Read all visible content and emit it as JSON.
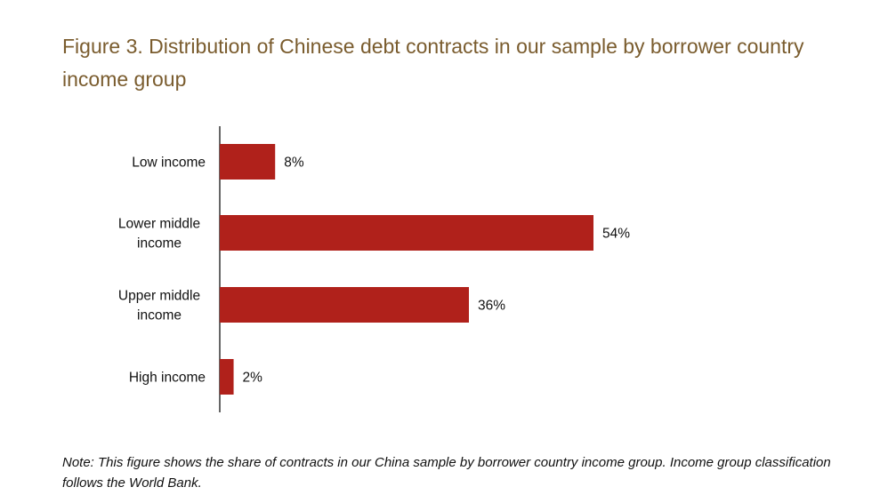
{
  "title": "Figure 3. Distribution of Chinese debt contracts in our sample by borrower country income group",
  "note": "Note: This figure shows the share of contracts in our China sample by borrower country income group. Income group classification follows the World Bank.",
  "colors": {
    "bar": "#b0211b",
    "title": "#7a5c2e",
    "axis": "#000000"
  },
  "chart_data": {
    "type": "bar",
    "orientation": "horizontal",
    "categories": [
      [
        "Low income"
      ],
      [
        "Lower middle",
        "income"
      ],
      [
        "Upper middle",
        "income"
      ],
      [
        "High income"
      ]
    ],
    "values": [
      8,
      54,
      36,
      2
    ],
    "value_labels": [
      "8%",
      "54%",
      "36%",
      "2%"
    ],
    "unit": "%",
    "xlim": [
      0,
      60
    ],
    "grid": false,
    "legend": "none"
  }
}
